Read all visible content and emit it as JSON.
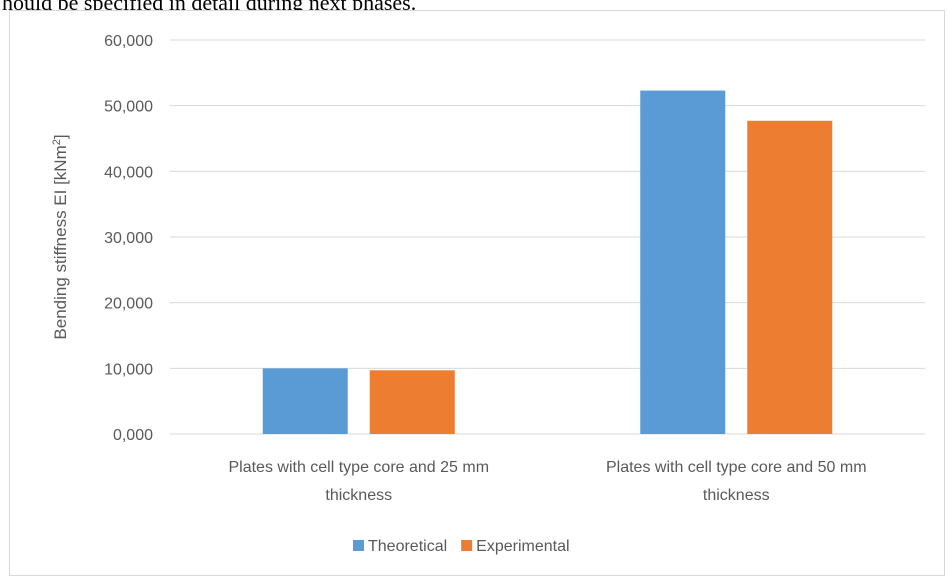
{
  "header_text": "hould be specified in detail during next phases.",
  "chart_data": {
    "type": "bar",
    "categories": [
      [
        "Plates with cell type core and 25 mm",
        "thickness"
      ],
      [
        "Plates with cell type core and 50 mm",
        "thickness"
      ]
    ],
    "series": [
      {
        "name": "Theoretical",
        "color": "#5b9bd5",
        "values": [
          10.0,
          52.3
        ]
      },
      {
        "name": "Experimental",
        "color": "#ed7d31",
        "values": [
          9.7,
          47.7
        ]
      }
    ],
    "ylabel": "Bending stiffness EI [kNm",
    "ylabel_sup": "2",
    "ylabel_close": "]",
    "ylim": [
      0,
      60
    ],
    "yticks": [
      0,
      10,
      20,
      30,
      40,
      50,
      60
    ],
    "ytick_labels": [
      "0,000",
      "10,000",
      "20,000",
      "30,000",
      "40,000",
      "50,000",
      "60,000"
    ],
    "grid": true,
    "legend_position": "bottom"
  }
}
